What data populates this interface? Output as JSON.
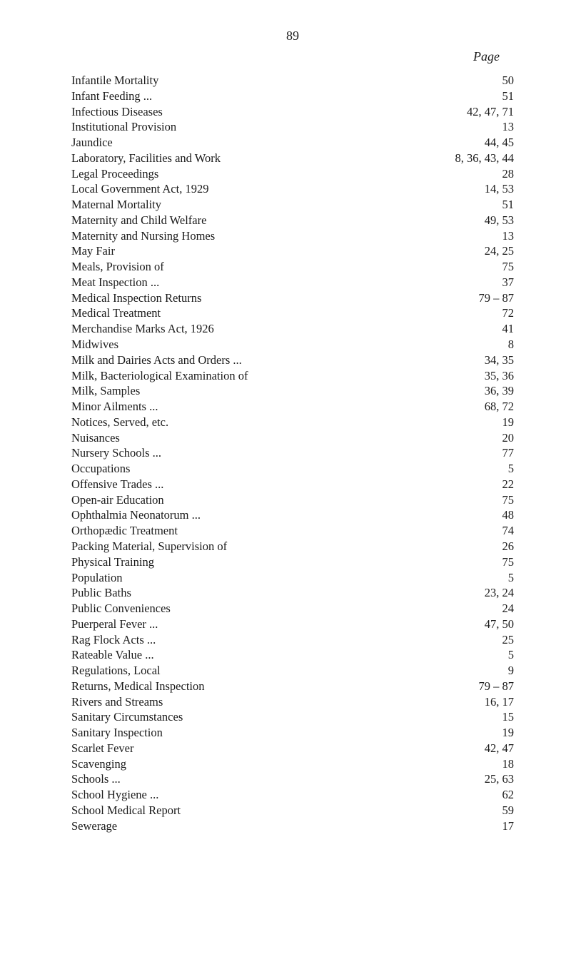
{
  "page_number": "89",
  "page_header": "Page",
  "entries": [
    {
      "title": "Infantile Mortality",
      "pages": "50"
    },
    {
      "title": "Infant Feeding   ...",
      "pages": "51"
    },
    {
      "title": "Infectious Diseases",
      "pages": "42, 47, 71"
    },
    {
      "title": "Institutional Provision",
      "pages": "13"
    },
    {
      "title": "Jaundice",
      "pages": "44, 45"
    },
    {
      "title": "Laboratory, Facilities and Work",
      "pages": "8, 36, 43, 44"
    },
    {
      "title": "Legal Proceedings",
      "pages": "28"
    },
    {
      "title": "Local Government Act, 1929",
      "pages": "14, 53"
    },
    {
      "title": "Maternal Mortality",
      "pages": "51"
    },
    {
      "title": "Maternity and Child Welfare",
      "pages": "49, 53"
    },
    {
      "title": "Maternity and Nursing Homes",
      "pages": "13"
    },
    {
      "title": "May Fair",
      "pages": "24, 25"
    },
    {
      "title": "Meals, Provision of",
      "pages": "75"
    },
    {
      "title": "Meat Inspection   ...",
      "pages": "37"
    },
    {
      "title": "Medical Inspection Returns",
      "pages": "79 – 87"
    },
    {
      "title": "Medical Treatment",
      "pages": "72"
    },
    {
      "title": "Merchandise Marks Act, 1926",
      "pages": "41"
    },
    {
      "title": "Midwives",
      "pages": "8"
    },
    {
      "title": "Milk and Dairies Acts and Orders   ...",
      "pages": "34, 35"
    },
    {
      "title": "Milk, Bacteriological Examination of",
      "pages": "35, 36"
    },
    {
      "title": "Milk, Samples",
      "pages": "36, 39"
    },
    {
      "title": "Minor Ailments   ...",
      "pages": "68, 72"
    },
    {
      "title": "Notices, Served, etc.",
      "pages": "19"
    },
    {
      "title": "Nuisances",
      "pages": "20"
    },
    {
      "title": "Nursery Schools ...",
      "pages": "77"
    },
    {
      "title": "Occupations",
      "pages": "5"
    },
    {
      "title": "Offensive Trades ...",
      "pages": "22"
    },
    {
      "title": "Open-air Education",
      "pages": "75"
    },
    {
      "title": "Ophthalmia Neonatorum   ...",
      "pages": "48"
    },
    {
      "title": "Orthopædic Treatment",
      "pages": "74"
    },
    {
      "title": "Packing Material, Supervision of",
      "pages": "26"
    },
    {
      "title": "Physical Training",
      "pages": "75"
    },
    {
      "title": "Population",
      "pages": "5"
    },
    {
      "title": "Public Baths",
      "pages": "23, 24"
    },
    {
      "title": "Public Conveniences",
      "pages": "24"
    },
    {
      "title": "Puerperal Fever ...",
      "pages": "47, 50"
    },
    {
      "title": "Rag Flock Acts   ...",
      "pages": "25"
    },
    {
      "title": "Rateable Value   ...",
      "pages": "5"
    },
    {
      "title": "Regulations, Local",
      "pages": "9"
    },
    {
      "title": "Returns, Medical Inspection",
      "pages": "79 – 87"
    },
    {
      "title": "Rivers and Streams",
      "pages": "16, 17"
    },
    {
      "title": "Sanitary Circumstances",
      "pages": "15"
    },
    {
      "title": "Sanitary Inspection",
      "pages": "19"
    },
    {
      "title": "Scarlet Fever",
      "pages": "42, 47"
    },
    {
      "title": "Scavenging",
      "pages": "18"
    },
    {
      "title": "Schools ...",
      "pages": "25, 63"
    },
    {
      "title": "School Hygiene   ...",
      "pages": "62"
    },
    {
      "title": "School Medical Report",
      "pages": "59"
    },
    {
      "title": "Sewerage",
      "pages": "17"
    }
  ]
}
